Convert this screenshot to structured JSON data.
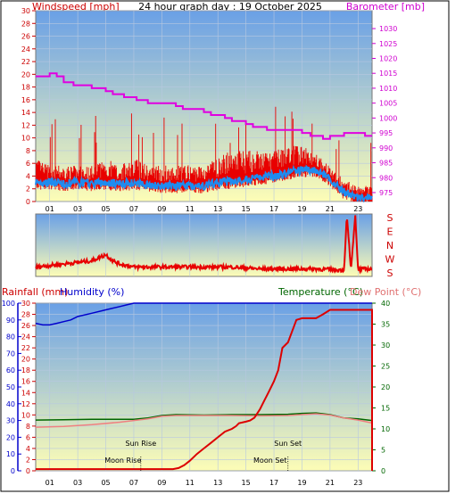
{
  "title": "24 hour graph day : 19 October 2025",
  "colors": {
    "wind": "#e80000",
    "gust": "#ff0000",
    "avg_wind": "#1e8cf0",
    "baro": "#e000e0",
    "rain": "#dd0000",
    "humidity": "#0000cc",
    "temperature": "#006600",
    "dew": "#f08080",
    "bg_top": "#6aa0e6",
    "bg_bottom": "#fdfdb6"
  },
  "chart_data": [
    {
      "type": "line",
      "panel": "wind-baro",
      "ylabel_left": "Windspeed [mph]",
      "ylabel_right": "Barometer [mb]",
      "left_ticks": [
        "0",
        "2",
        "4",
        "6",
        "8",
        "10",
        "12",
        "14",
        "16",
        "18",
        "20",
        "22",
        "24",
        "26",
        "28",
        "30"
      ],
      "right_ticks": [
        "975",
        "980",
        "985",
        "990",
        "995",
        "1000",
        "1005",
        "1010",
        "1015",
        "1020",
        "1025",
        "1030"
      ],
      "x_ticks": [
        "01",
        "03",
        "05",
        "07",
        "09",
        "11",
        "13",
        "15",
        "17",
        "19",
        "21",
        "23"
      ],
      "ylim_left": [
        0,
        30
      ],
      "ylim_right": [
        972,
        1036
      ],
      "xlim": [
        0,
        24
      ],
      "series": [
        {
          "key": "baro",
          "x": [
            0,
            0.7,
            1.0,
            1.5,
            2.0,
            2.7,
            3.0,
            4.0,
            5.0,
            5.5,
            6.3,
            7.2,
            8.0,
            9.0,
            10.0,
            10.5,
            11.0,
            12.0,
            12.5,
            13.0,
            13.5,
            14.0,
            14.5,
            15.0,
            15.5,
            16.0,
            16.5,
            17.0,
            18.0,
            19.0,
            19.6,
            20.0,
            20.5,
            21.0,
            22.0,
            22.5,
            23.0,
            23.5,
            24.0
          ],
          "y": [
            1014,
            1014,
            1015,
            1014,
            1012,
            1011,
            1011,
            1010,
            1009,
            1008,
            1007,
            1006,
            1005,
            1005,
            1004,
            1003,
            1003,
            1002,
            1001,
            1001,
            1000,
            999,
            999,
            998,
            997,
            997,
            996,
            996,
            996,
            995,
            994,
            994,
            993,
            994,
            995,
            995,
            995,
            994,
            994
          ]
        },
        {
          "key": "gust",
          "x": [
            0,
            1,
            2,
            3,
            4,
            5,
            6,
            7,
            8,
            9,
            10,
            11,
            12,
            13,
            14,
            15,
            16,
            17,
            18,
            19,
            20,
            21,
            22,
            23,
            24
          ],
          "y": [
            6,
            5,
            5,
            5,
            5,
            6,
            5,
            6,
            5,
            5,
            5,
            5,
            5,
            6,
            7,
            7,
            7,
            7,
            8,
            8,
            7,
            5,
            3,
            2,
            2
          ]
        },
        {
          "key": "avg_wind",
          "x": [
            0,
            1,
            2,
            3,
            4,
            5,
            6,
            7,
            8,
            9,
            10,
            11,
            12,
            13,
            14,
            15,
            16,
            17,
            18,
            19,
            20,
            21,
            22,
            23,
            24
          ],
          "y": [
            3,
            3,
            2.8,
            3,
            2.8,
            3,
            2.8,
            3,
            2.7,
            2.5,
            2.5,
            2.5,
            2.5,
            3,
            3.2,
            3.5,
            3.8,
            4,
            4.5,
            5,
            5,
            3.5,
            1.5,
            0.5,
            0.5
          ]
        }
      ]
    },
    {
      "type": "line",
      "panel": "wind-direction",
      "right_labels": [
        "S",
        "E",
        "N",
        "W",
        "S"
      ],
      "xlim": [
        0,
        24
      ],
      "series": [
        {
          "key": "direction",
          "x": [
            0,
            2,
            4,
            5,
            5.5,
            6,
            7,
            8,
            10,
            12,
            14,
            16,
            18,
            20,
            22,
            22.2,
            22.5,
            22.8,
            23,
            23.4,
            23.8,
            24
          ],
          "y": [
            0.15,
            0.2,
            0.25,
            0.35,
            0.25,
            0.2,
            0.15,
            0.15,
            0.15,
            0.15,
            0.15,
            0.12,
            0.12,
            0.12,
            0.1,
            0.98,
            0.1,
            0.98,
            0.1,
            0.12,
            0.12,
            0.12
          ]
        }
      ]
    },
    {
      "type": "line",
      "panel": "rain-humidity-temp",
      "ylabel_rain": "Rainfall (mm)",
      "ylabel_humidity": "Humidity (%)",
      "ylabel_temp": "Temperature (°C)",
      "ylabel_dew": "Dew Point (°C)",
      "humidity_ticks": [
        "0",
        "10",
        "20",
        "30",
        "40",
        "50",
        "60",
        "70",
        "80",
        "90",
        "100"
      ],
      "rain_ticks": [
        "0",
        "2",
        "4",
        "6",
        "8",
        "10",
        "12",
        "14",
        "16",
        "18",
        "20",
        "22",
        "24",
        "26",
        "28",
        "30"
      ],
      "temp_ticks": [
        "0",
        "5",
        "10",
        "15",
        "20",
        "25",
        "30",
        "35",
        "40"
      ],
      "x_ticks": [
        "01",
        "03",
        "05",
        "07",
        "09",
        "11",
        "13",
        "15",
        "17",
        "19",
        "21",
        "23"
      ],
      "ylim_humidity": [
        0,
        100
      ],
      "ylim_rain": [
        0,
        30
      ],
      "ylim_temp": [
        0,
        40
      ],
      "xlim": [
        0,
        24
      ],
      "annotations": [
        {
          "label": "Sun Rise",
          "x": 7.5
        },
        {
          "label": "Moon Rise",
          "x": 7.5
        },
        {
          "label": "Sun Set",
          "x": 18.0
        },
        {
          "label": "Moon Set",
          "x": 18.0
        }
      ],
      "series": [
        {
          "key": "humidity",
          "x": [
            0,
            0.5,
            1,
            1.5,
            2,
            2.5,
            3,
            4,
            5,
            6,
            6.5,
            7,
            24
          ],
          "y": [
            88,
            87,
            87,
            88,
            89,
            90,
            92,
            94,
            96,
            98,
            99,
            100,
            100
          ]
        },
        {
          "key": "rain",
          "x": [
            0,
            9.8,
            10.2,
            10.6,
            11,
            11.5,
            12,
            12.5,
            13,
            13.5,
            14,
            14.3,
            14.5,
            15,
            15.3,
            15.6,
            16,
            16.3,
            16.6,
            17,
            17.3,
            17.6,
            18,
            18.3,
            18.6,
            19,
            20,
            20.5,
            21,
            24
          ],
          "y": [
            0.3,
            0.3,
            0.5,
            1,
            1.8,
            3,
            4,
            5,
            6,
            7,
            7.5,
            8,
            8.5,
            8.8,
            9,
            9.5,
            11,
            12.5,
            14,
            16,
            18,
            22,
            23,
            25,
            27,
            27.3,
            27.3,
            28,
            28.8,
            28.8
          ]
        },
        {
          "key": "temperature",
          "x": [
            0,
            2,
            4,
            6,
            7,
            8,
            9,
            10,
            12,
            14,
            16,
            18,
            19,
            20,
            21,
            22,
            23,
            24
          ],
          "y": [
            12.1,
            12.2,
            12.3,
            12.3,
            12.3,
            12.6,
            13.2,
            13.4,
            13.3,
            13.4,
            13.4,
            13.5,
            13.7,
            13.8,
            13.4,
            12.6,
            12.4,
            12.0
          ]
        },
        {
          "key": "dew",
          "x": [
            0,
            2,
            4,
            6,
            7,
            8,
            9,
            10,
            12,
            14,
            16,
            18,
            19,
            20,
            21,
            22,
            23,
            24
          ],
          "y": [
            10.4,
            10.6,
            11.0,
            11.6,
            12.0,
            12.4,
            13.0,
            13.2,
            13.2,
            13.2,
            13.1,
            13.2,
            13.4,
            13.6,
            13.3,
            12.6,
            12.1,
            11.4
          ]
        }
      ]
    }
  ]
}
